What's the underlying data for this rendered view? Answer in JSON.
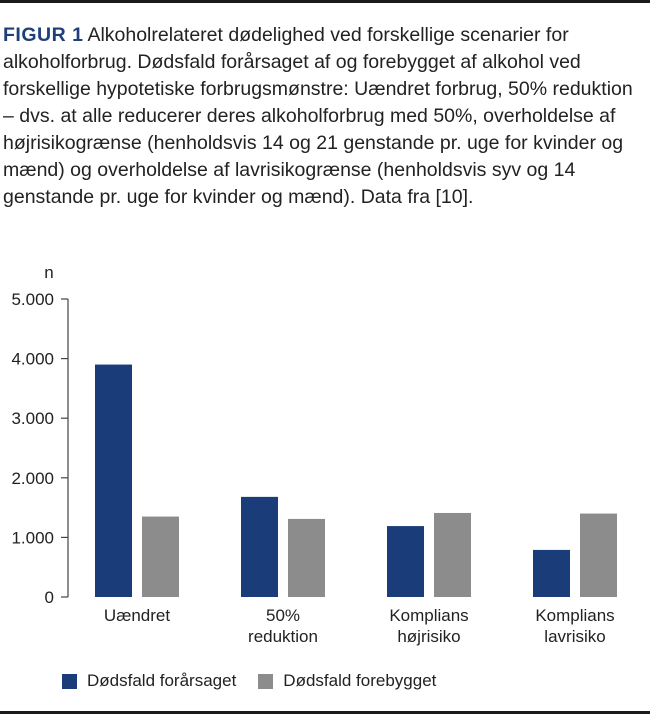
{
  "caption": {
    "label": "FIGUR 1",
    "text": "Alkoholrelateret dødelighed ved forskellige scenarier for alkoholforbrug. Dødsfald forårsaget af og forebygget af alkohol ved forskellige hypotetiske forbrugsmønstre: Uændret forbrug, 50% reduktion – dvs. at alle reducerer deres alkohol­forbrug med 50%, overholdelse af højrisikogrænse (henholdsvis 14 og 21 genstande pr. uge for kvinder og mænd) og overhol­delse af lavrisikogrænse (henholdsvis syv og 14 genstande pr. uge for kvinder og mænd). Data fra [10]."
  },
  "chart_data": {
    "type": "bar",
    "ylabel": "n",
    "ylim": [
      0,
      5000
    ],
    "yticks": [
      {
        "value": 0,
        "label": "0"
      },
      {
        "value": 1000,
        "label": "1.000"
      },
      {
        "value": 2000,
        "label": "2.000"
      },
      {
        "value": 3000,
        "label": "3.000"
      },
      {
        "value": 4000,
        "label": "4.000"
      },
      {
        "value": 5000,
        "label": "5.000"
      }
    ],
    "categories": [
      [
        "Uændret"
      ],
      [
        "50%",
        "reduktion"
      ],
      [
        "Komplians",
        "højrisiko"
      ],
      [
        "Komplians",
        "lavrisiko"
      ]
    ],
    "series": [
      {
        "name": "Dødsfald forårsaget",
        "color": "#1a3d79",
        "values": [
          3900,
          1680,
          1190,
          790
        ]
      },
      {
        "name": "Dødsfald forebygget",
        "color": "#8c8c8c",
        "values": [
          1350,
          1310,
          1410,
          1400
        ]
      }
    ],
    "grid": false,
    "legend_position": "bottom-left"
  }
}
